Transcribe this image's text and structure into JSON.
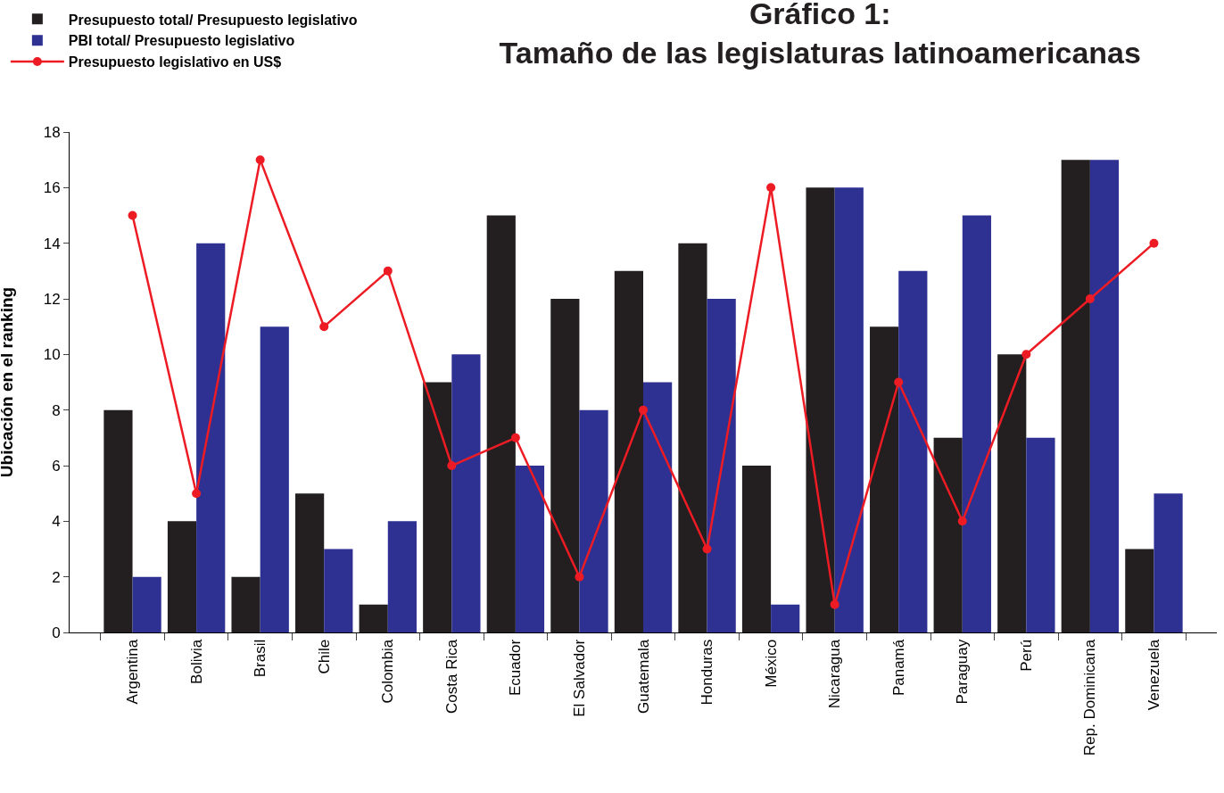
{
  "chart_data": {
    "type": "bar",
    "title": "Gráfico 1:\nTamaño de las legislaturas latinoamericanas",
    "ylabel": "Ubicación en el ranking",
    "categories": [
      "Argentina",
      "Bolivia",
      "Brasil",
      "Chile",
      "Colombia",
      "Costa Rica",
      "Ecuador",
      "El Salvador",
      "Guatemala",
      "Honduras",
      "México",
      "Nicaragua",
      "Panamá",
      "Paraguay",
      "Perú",
      "Rep. Dominicana",
      "Venezuela"
    ],
    "series": [
      {
        "name": "Presupuesto total/ Presupuesto legislativo",
        "color": "#231f20",
        "values": [
          8,
          4,
          2,
          5,
          1,
          9,
          15,
          12,
          13,
          14,
          6,
          16,
          11,
          7,
          10,
          17,
          3
        ]
      },
      {
        "name": "PBI total/ Presupuesto legislativo",
        "color": "#2e3192",
        "values": [
          2,
          14,
          11,
          3,
          4,
          10,
          6,
          8,
          9,
          12,
          1,
          16,
          13,
          15,
          7,
          17,
          5
        ]
      },
      {
        "name": "Presupuesto legislativo en US$",
        "type": "line",
        "color": "#ed1c24",
        "values": [
          15,
          5,
          17,
          11,
          13,
          6,
          7,
          2,
          8,
          3,
          16,
          1,
          9,
          4,
          10,
          12,
          14
        ]
      }
    ],
    "ylim": [
      0,
      18
    ],
    "yticks": [
      0,
      2,
      4,
      6,
      8,
      10,
      12,
      14,
      16,
      18
    ],
    "legend": "top left",
    "marker": "circle",
    "line_style": "solid"
  }
}
